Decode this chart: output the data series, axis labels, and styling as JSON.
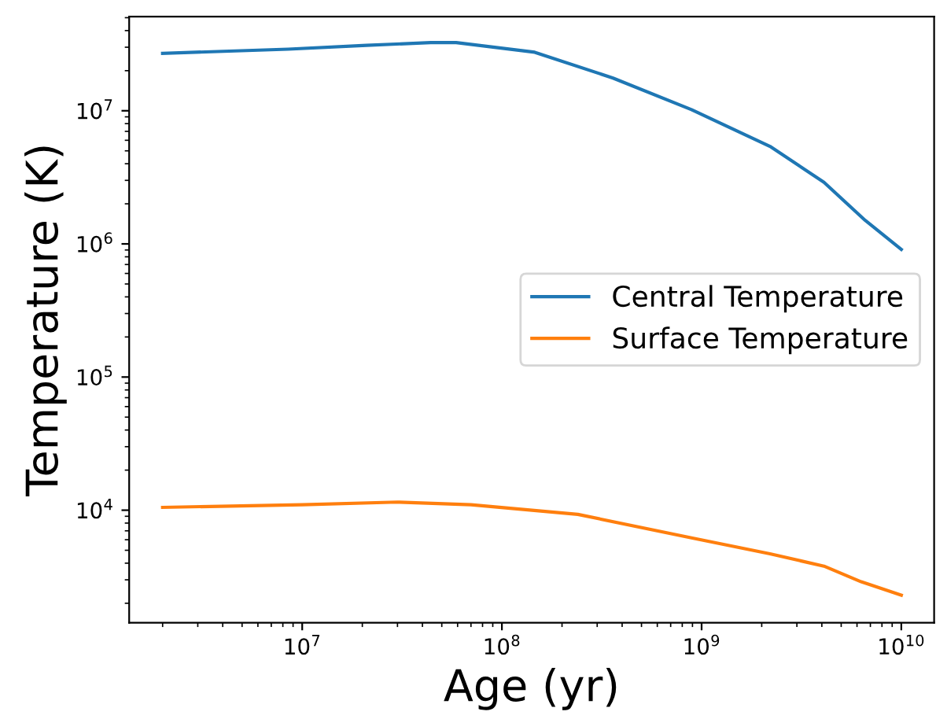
{
  "chart_data": {
    "type": "line",
    "xlabel": "Age (yr)",
    "ylabel": "Temperature (K)",
    "log": "xy",
    "grid": false,
    "legend": "center right",
    "xlim": [
      1360000.0,
      14600000000.0
    ],
    "ylim": [
      1430.0,
      51000000.0
    ],
    "xticks": [
      {
        "value": 10000000.0,
        "label": "10$^{7}$"
      },
      {
        "value": 100000000.0,
        "label": "10$^{8}$"
      },
      {
        "value": 1000000000.0,
        "label": "10$^{9}$"
      },
      {
        "value": 10000000000.0,
        "label": "10$^{10}$"
      }
    ],
    "yticks": [
      {
        "value": 10000.0,
        "label": "10$^{4}$"
      },
      {
        "value": 100000.0,
        "label": "10$^{5}$"
      },
      {
        "value": 1000000.0,
        "label": "10$^{6}$"
      },
      {
        "value": 10000000.0,
        "label": "10$^{7}$"
      }
    ],
    "series": [
      {
        "name": "Central Temperature",
        "color": "#1f77b4",
        "x": [
          2000000.0,
          8500000.0,
          21000000.0,
          44000000.0,
          59000000.0,
          146000000.0,
          360000000.0,
          890000000.0,
          2200000000.0,
          4100000000.0,
          6600000000.0,
          10000000000.0
        ],
        "values": [
          27000000.0,
          29000000.0,
          31000000.0,
          32500000.0,
          32500000.0,
          27500000.0,
          17600000.0,
          10200000.0,
          5400000.0,
          2900000.0,
          1500000.0,
          910000.0
        ]
      },
      {
        "name": "Surface Temperature",
        "color": "#ff7f0e",
        "x": [
          2000000.0,
          10000000.0,
          30000000.0,
          70000000.0,
          240000000.0,
          890000000.0,
          2200000000.0,
          4100000000.0,
          6300000000.0,
          10000000000.0
        ],
        "values": [
          10500.0,
          11000.0,
          11500.0,
          11000.0,
          9300.0,
          6200.0,
          4700.0,
          3800.0,
          2900.0,
          2300.0
        ]
      }
    ]
  }
}
